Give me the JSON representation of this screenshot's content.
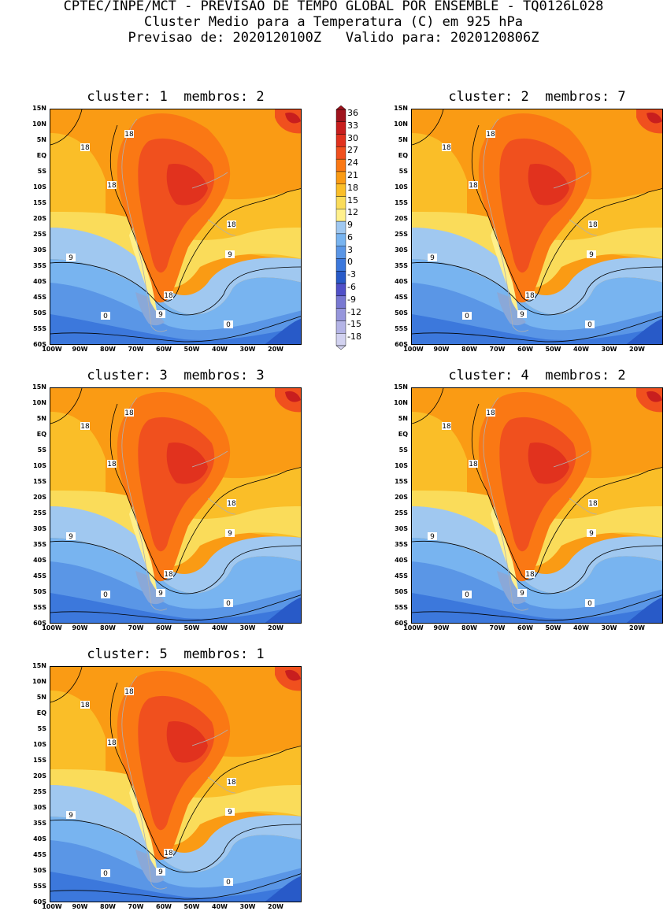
{
  "header": {
    "line1": "CPTEC/INPE/MCT - PREVISAO DE TEMPO GLOBAL POR ENSEMBLE - TQ0126L028",
    "line2": "Cluster Medio para a Temperatura (C) em 925 hPa",
    "line3": "Previsao de: 2020120100Z   Valido para: 2020120806Z"
  },
  "panels": [
    {
      "title": "cluster: 1  membros: 2"
    },
    {
      "title": "cluster: 2  membros: 7"
    },
    {
      "title": "cluster: 3  membros: 3"
    },
    {
      "title": "cluster: 4  membros: 2"
    },
    {
      "title": "cluster: 5  membros: 1"
    }
  ],
  "axes": {
    "lat_labels": [
      "15N",
      "10N",
      "5N",
      "EQ",
      "5S",
      "10S",
      "15S",
      "20S",
      "25S",
      "30S",
      "35S",
      "40S",
      "45S",
      "50S",
      "55S",
      "60S"
    ],
    "lon_labels": [
      "100W",
      "90W",
      "80W",
      "70W",
      "60W",
      "50W",
      "40W",
      "30W",
      "20W"
    ]
  },
  "contour_labels": {
    "c18": "18",
    "c9": "9",
    "c0": "0"
  },
  "colorbar": {
    "levels": [
      "36",
      "33",
      "30",
      "27",
      "24",
      "21",
      "18",
      "15",
      "12",
      "9",
      "6",
      "3",
      "0",
      "-3",
      "-6",
      "-9",
      "-12",
      "-15",
      "-18"
    ],
    "colors": [
      "#a0141e",
      "#c81e1e",
      "#e1321e",
      "#f0501e",
      "#fa7814",
      "#fa9b14",
      "#fabe28",
      "#fadc5a",
      "#fff08c",
      "#a0c8f0",
      "#78b4f0",
      "#5a96e6",
      "#3c78dc",
      "#285ac8",
      "#5050c8",
      "#7878d2",
      "#9696dc",
      "#b4b4e6",
      "#d2d2f0"
    ]
  }
}
